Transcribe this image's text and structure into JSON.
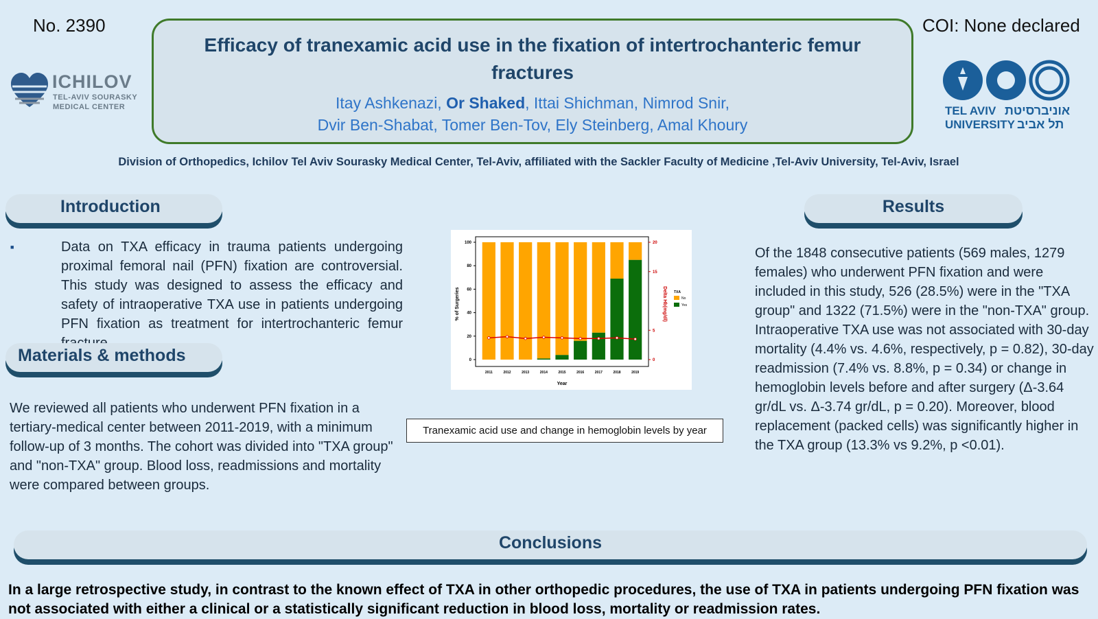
{
  "header": {
    "poster_number": "No. 2390",
    "coi": "COI: None declared",
    "title_line1": "Efficacy of tranexamic acid use in the fixation of intertrochanteric femur",
    "title_line2": "fractures",
    "authors_line1_a": "Itay Ashkenazi, ",
    "authors_line1_b": "Or Shaked",
    "authors_line1_c": ", Ittai Shichman, Nimrod Snir,",
    "authors_line2": "Dvir Ben-Shabat,  Tomer Ben-Tov, Ely Steinberg, Amal Khoury",
    "affiliation": "Division of Orthopedics, Ichilov Tel Aviv Sourasky Medical Center, Tel-Aviv, affiliated with the Sackler Faculty of Medicine ,Tel-Aviv University, Tel-Aviv, Israel"
  },
  "logos": {
    "ichilov_name": "ICHILOV",
    "ichilov_sub1": "TEL-AVIV SOURASKY",
    "ichilov_sub2": "MEDICAL CENTER",
    "tau_en1": "TEL AVIV",
    "tau_en2": "UNIVERSITY",
    "tau_he1": "אוניברסיטת",
    "tau_he2": "תל אביב"
  },
  "sections": {
    "introduction_title": "Introduction",
    "introduction_text": "Data on TXA efficacy in trauma patients undergoing proximal femoral nail (PFN) fixation are controversial. This study was designed to assess the efficacy and safety of intraoperative TXA use in patients undergoing PFN fixation as treatment for intertrochanteric femur fracture.",
    "methods_title": "Materials & methods",
    "methods_text": "We reviewed all patients who underwent PFN fixation in a tertiary-medical center between 2011-2019, with a minimum follow-up of 3 months. The cohort was divided into \"TXA group\" and \"non-TXA\" group. Blood loss, readmissions and mortality were compared between groups.",
    "results_title": "Results",
    "results_text": "Of the 1848 consecutive patients (569 males, 1279 females) who underwent PFN fixation and were included in this study, 526 (28.5%) were in the \"TXA group\" and 1322 (71.5%) were in the \"non-TXA\" group. Intraoperative TXA use was not associated with 30-day mortality (4.4% vs. 4.6%, respectively, p = 0.82), 30-day readmission (7.4% vs. 8.8%, p = 0.34) or change in hemoglobin levels before and after surgery  (Δ-3.64 gr/dL vs. Δ-3.74 gr/dL, p = 0.20). Moreover, blood replacement (packed cells) was significantly higher in the TXA group (13.3% vs 9.2%, p <0.01).",
    "conclusions_title": "Conclusions",
    "conclusions_text": "In a large retrospective study, in contrast to the known effect of TXA in other orthopedic procedures, the use of TXA in patients undergoing PFN fixation was not associated with either a clinical or a statistically significant reduction in blood loss, mortality or readmission rates."
  },
  "figure": {
    "caption": "Tranexamic acid use and change in hemoglobin levels by year"
  },
  "chart_data": {
    "type": "bar",
    "stacked": true,
    "categories": [
      "2011",
      "2012",
      "2013",
      "2014",
      "2015",
      "2016",
      "2017",
      "2018",
      "2019"
    ],
    "series": [
      {
        "name": "No",
        "color": "#ffa500",
        "values": [
          100,
          100,
          100,
          99,
          96,
          84,
          77,
          31,
          15
        ]
      },
      {
        "name": "Yes",
        "color": "#0b6e0b",
        "values": [
          0,
          0,
          0,
          1,
          4,
          16,
          23,
          69,
          85
        ]
      }
    ],
    "line_series": {
      "axis": "right",
      "color": "#dd0000",
      "values": [
        3.7,
        3.9,
        3.6,
        3.8,
        3.7,
        3.6,
        3.6,
        3.7,
        3.5
      ]
    },
    "legend_title": "TXA",
    "legend_placement": "right",
    "xlabel": "Year",
    "ylabel": "% of Surgeries",
    "y2label": "Delta Hb(mg/dl)",
    "ylim": [
      0,
      100
    ],
    "y2lim": [
      0,
      20
    ],
    "yticks": [
      0,
      20,
      40,
      60,
      80,
      100
    ],
    "y2ticks": [
      0,
      5,
      15,
      20
    ],
    "grid": false
  }
}
